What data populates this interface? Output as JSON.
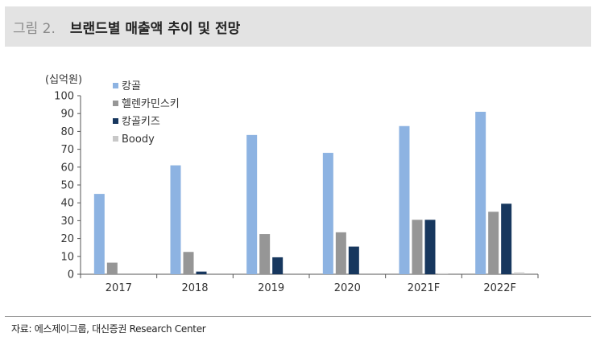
{
  "header": {
    "figure_label": "그림 2.",
    "title": "브랜드별 매출액 추이 및 전망",
    "accent": "#e3e3e3"
  },
  "source": "자료: 에스제이그룹, 대신증권 Research Center",
  "chart_data": {
    "type": "bar",
    "ylabel": "(십억원)",
    "xlabel": "",
    "ylim": [
      0,
      100
    ],
    "yticks": [
      0,
      10,
      20,
      30,
      40,
      50,
      60,
      70,
      80,
      90,
      100
    ],
    "grid": false,
    "legend_position": "top-left",
    "categories": [
      "2017",
      "2018",
      "2019",
      "2020",
      "2021F",
      "2022F"
    ],
    "series": [
      {
        "name": "캉골",
        "color": "#8db3e2",
        "values": [
          45,
          61,
          78,
          68,
          83,
          91
        ]
      },
      {
        "name": "헬렌카민스키",
        "color": "#969696",
        "values": [
          6.5,
          12.5,
          22.5,
          23.5,
          30.5,
          35
        ]
      },
      {
        "name": "캉골키즈",
        "color": "#17375e",
        "values": [
          0,
          1.5,
          9.5,
          15.5,
          30.5,
          39.5
        ]
      },
      {
        "name": "Boody",
        "color": "#c8c8c8",
        "values": [
          0,
          0,
          0,
          0,
          0.5,
          1
        ]
      }
    ]
  }
}
